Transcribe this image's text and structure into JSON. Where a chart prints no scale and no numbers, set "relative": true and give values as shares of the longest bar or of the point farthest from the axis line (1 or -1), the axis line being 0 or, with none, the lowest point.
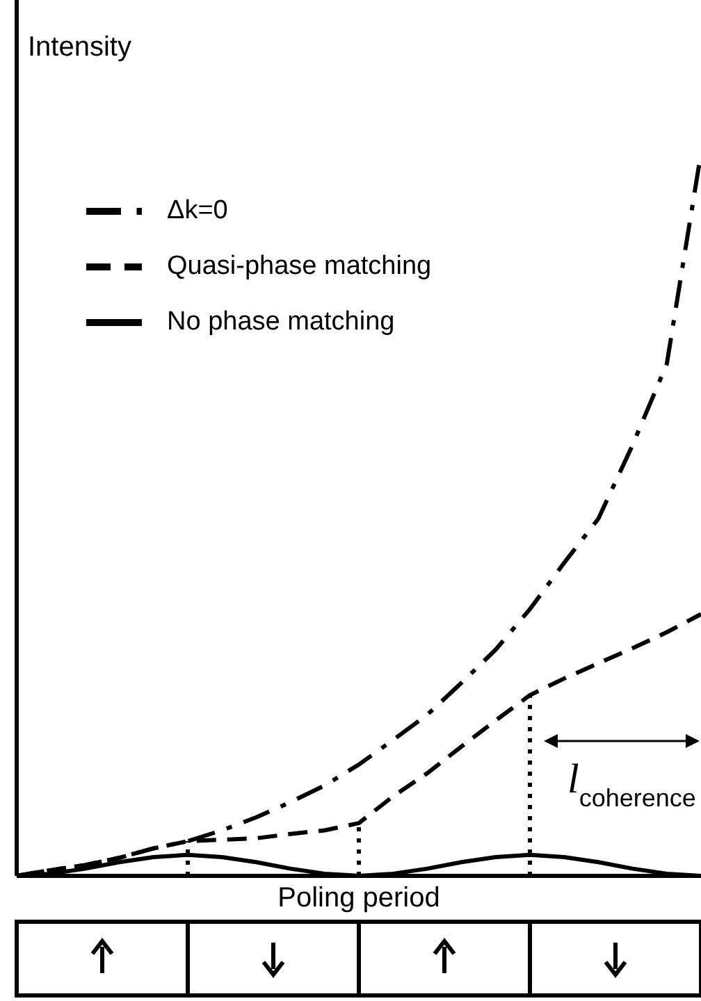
{
  "chart_data": {
    "type": "line",
    "relative": true,
    "ylabel": "Intensity",
    "xlabel": "Poling period",
    "legend": "top left",
    "marker": "none",
    "categories": [
      null,
      null,
      null,
      null,
      null,
      null,
      null,
      null,
      null,
      null,
      null,
      null,
      null,
      null,
      null,
      null,
      null,
      null,
      null,
      null,
      null
    ],
    "series": [
      {
        "name": "Δk=0",
        "color": "#000000",
        "line_style": "dashdot",
        "values": [
          0,
          0.008,
          0.015,
          0.025,
          0.038,
          0.048,
          0.063,
          0.081,
          0.102,
          0.125,
          0.154,
          0.188,
          0.223,
          0.267,
          0.313,
          0.369,
          0.433,
          0.494,
          0.596,
          0.708,
          1
        ]
      },
      {
        "name": "Quasi-phase matching",
        "color": "#000000",
        "line_style": "dashed",
        "values": [
          0,
          0.008,
          0.015,
          0.025,
          0.038,
          0.048,
          0.05,
          0.052,
          0.058,
          0.063,
          0.073,
          0.11,
          0.142,
          0.179,
          0.215,
          0.25,
          0.273,
          0.294,
          0.315,
          0.337,
          0.362
        ]
      },
      {
        "name": "No phase matching",
        "color": "#000000",
        "line_style": "solid",
        "values": [
          0,
          0.003,
          0.01,
          0.019,
          0.026,
          0.029,
          0.026,
          0.019,
          0.01,
          0.003,
          0,
          0.003,
          0.01,
          0.019,
          0.026,
          0.029,
          0.026,
          0.019,
          0.01,
          0.003,
          0
        ]
      }
    ],
    "annotations": [
      "l$_{coherence}$"
    ]
  }
}
